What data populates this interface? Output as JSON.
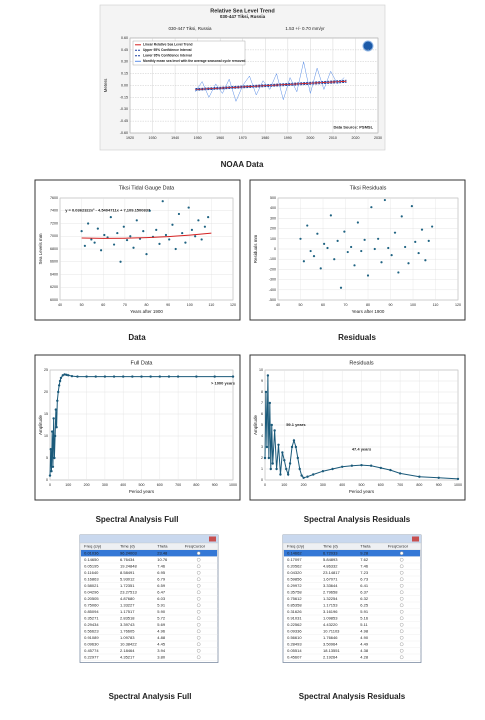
{
  "chart_data": [
    {
      "type": "line",
      "title": "Relative Sea Level Trend",
      "subtitle": "030-447 Tiksi, Russia",
      "station": "030-447 Tiksi, Russia",
      "trend_label": "1.53 +/- 0.70 mm/yr",
      "y_label": "Meters",
      "xlim": [
        1920,
        2030
      ],
      "xticks": [
        1920,
        1930,
        1940,
        1950,
        1960,
        1970,
        1980,
        1990,
        2000,
        2010,
        2020,
        2030
      ],
      "ylim": [
        -0.6,
        0.6
      ],
      "yticks": [
        {
          "value": -0.6,
          "label": "-0.60"
        },
        {
          "value": -0.45,
          "label": "-0.45"
        },
        {
          "value": -0.3,
          "label": "-0.30"
        },
        {
          "value": -0.15,
          "label": "-0.15"
        },
        {
          "value": 0,
          "label": "0.00"
        },
        {
          "value": 0.15,
          "label": "0.15"
        },
        {
          "value": 0.3,
          "label": "0.30"
        },
        {
          "value": 0.45,
          "label": "0.45"
        },
        {
          "value": 0.6,
          "label": "0.60"
        }
      ],
      "grid": true,
      "legend": "upper left",
      "annotations": [
        "Data Source: PSMSL"
      ],
      "series": [
        {
          "name": "Linear Relative Sea Level Trend",
          "color": "#d42020",
          "x": [
            1949,
            2016
          ],
          "values": [
            -0.05,
            0.053
          ]
        },
        {
          "name": "Upper 95% Confidence Interval",
          "color": "#1d3f9e",
          "dash": true,
          "x": [
            1949,
            2016
          ],
          "values": [
            -0.04,
            0.066
          ]
        },
        {
          "name": "Lower 95% Confidence Interval",
          "color": "#1d3f9e",
          "dash": true,
          "x": [
            1949,
            2016
          ],
          "values": [
            -0.06,
            0.04
          ]
        },
        {
          "name": "Monthly mean sea level with the average seasonal cycle removed",
          "color": "#5b8ee6",
          "x": [
            1949,
            1952,
            1955,
            1958,
            1961,
            1964,
            1967,
            1970,
            1973,
            1976,
            1979,
            1982,
            1985,
            1988,
            1991,
            1994,
            1997,
            2000,
            2003,
            2006,
            2009,
            2012,
            2015
          ],
          "values": [
            -0.08,
            0.05,
            -0.15,
            0.02,
            -0.1,
            0.08,
            -0.2,
            0.0,
            0.12,
            -0.12,
            0.06,
            -0.05,
            0.15,
            -0.18,
            0.1,
            -0.08,
            0.3,
            -0.1,
            0.22,
            -0.05,
            0.18,
            0.02,
            0.1
          ]
        }
      ]
    },
    {
      "type": "scatter",
      "title": "Tiksi Tidal Gauge Data",
      "x_label": "Years after 1900",
      "y_label": "Sea Levels mm",
      "xlim": [
        40,
        120
      ],
      "xticks": [
        40,
        50,
        60,
        70,
        80,
        90,
        100,
        110,
        120
      ],
      "ylim": [
        6000,
        7600
      ],
      "yticks": [
        6000,
        6200,
        6400,
        6600,
        6800,
        7000,
        7200,
        7400,
        7600
      ],
      "grid": true,
      "annotations": [
        "y = 0.0362322x² - 4.5404711x + 7,109.1500837"
      ],
      "series": [
        {
          "type": "scatter",
          "color": "#1f6382",
          "x": [
            50,
            51.5,
            53,
            54.5,
            56,
            57.5,
            59,
            60.5,
            62,
            63.5,
            65,
            66.5,
            68,
            69.5,
            71,
            72.5,
            74,
            75.5,
            77,
            78.5,
            80,
            81.5,
            83,
            84.5,
            86,
            87.5,
            89,
            90.5,
            92,
            93.5,
            95,
            96.5,
            98,
            99.5,
            101,
            102.5,
            104,
            105.5,
            107,
            108.5
          ],
          "values": [
            7080,
            6850,
            7200,
            6950,
            6900,
            7120,
            6780,
            7020,
            6980,
            7300,
            6870,
            7050,
            6600,
            7150,
            6940,
            7000,
            6820,
            7250,
            6960,
            7080,
            6720,
            7400,
            6990,
            7100,
            6880,
            7550,
            7020,
            6950,
            7180,
            6800,
            7350,
            7050,
            6900,
            7450,
            7100,
            7000,
            7250,
            6950,
            7150,
            7300
          ]
        },
        {
          "type": "line",
          "color": "#d42020",
          "x": [
            50,
            60,
            70,
            80,
            90,
            100,
            110
          ],
          "values": [
            6972.7,
            6967.2,
            6968.8,
            6977.8,
            6994.0,
            7017.4,
            7048.1
          ]
        }
      ]
    },
    {
      "type": "scatter",
      "title": "Tiksi Residuals",
      "x_label": "Years after 1900",
      "y_label": "Residuals mm",
      "xlim": [
        40,
        120
      ],
      "xticks": [
        40,
        50,
        60,
        70,
        80,
        90,
        100,
        110,
        120
      ],
      "ylim": [
        -500,
        500
      ],
      "yticks": [
        -500,
        -400,
        -300,
        -200,
        -100,
        0,
        100,
        200,
        300,
        400,
        500
      ],
      "grid": true,
      "series": [
        {
          "type": "scatter",
          "color": "#1f6382",
          "x": [
            50,
            51.5,
            53,
            54.5,
            56,
            57.5,
            59,
            60.5,
            62,
            63.5,
            65,
            66.5,
            68,
            69.5,
            71,
            72.5,
            74,
            75.5,
            77,
            78.5,
            80,
            81.5,
            83,
            84.5,
            86,
            87.5,
            89,
            90.5,
            92,
            93.5,
            95,
            96.5,
            98,
            99.5,
            101,
            102.5,
            104,
            105.5,
            107,
            108.5
          ],
          "values": [
            100,
            -120,
            230,
            -20,
            -70,
            150,
            -190,
            50,
            10,
            330,
            -100,
            80,
            -380,
            170,
            -30,
            20,
            -160,
            260,
            -20,
            90,
            -260,
            410,
            0,
            100,
            -130,
            480,
            10,
            -60,
            160,
            -230,
            320,
            20,
            -140,
            420,
            70,
            -40,
            190,
            -110,
            80,
            220
          ]
        }
      ]
    },
    {
      "type": "line",
      "title": "Full Data",
      "x_label": "Period years",
      "y_label": "Amplitude",
      "xlim": [
        0,
        1000
      ],
      "xticks": [
        0,
        100,
        200,
        300,
        400,
        500,
        600,
        700,
        800,
        900,
        1000
      ],
      "ylim": [
        0,
        25
      ],
      "yticks": [
        0,
        5,
        10,
        15,
        20,
        25
      ],
      "grid": true,
      "annotations": [
        "> 1000 years"
      ],
      "series": [
        {
          "color": "#1b5a7a",
          "marker": true,
          "x": [
            0,
            4,
            8,
            12,
            16,
            20,
            24,
            28,
            32,
            36,
            40,
            45,
            50,
            55,
            60,
            70,
            80,
            90,
            100,
            120,
            150,
            200,
            250,
            300,
            350,
            400,
            450,
            500,
            550,
            600,
            650,
            700,
            800,
            900,
            1000
          ],
          "values": [
            1,
            7,
            2,
            11,
            3,
            14,
            5,
            10,
            16,
            12,
            18,
            20,
            21.5,
            22.5,
            23.2,
            23.8,
            24,
            23.9,
            23.8,
            23.6,
            23.5,
            23.5,
            23.5,
            23.5,
            23.5,
            23.5,
            23.5,
            23.5,
            23.5,
            23.5,
            23.5,
            23.5,
            23.5,
            23.5,
            23.5
          ]
        }
      ]
    },
    {
      "type": "line",
      "title": "Residuals",
      "x_label": "Period years",
      "y_label": "Amplitude",
      "xlim": [
        0,
        1000
      ],
      "xticks": [
        0,
        100,
        200,
        300,
        400,
        500,
        600,
        700,
        800,
        900,
        1000
      ],
      "ylim": [
        0,
        10
      ],
      "yticks": [
        0,
        1,
        2,
        3,
        4,
        5,
        6,
        7,
        8,
        9,
        10
      ],
      "grid": true,
      "annotations": [
        "59.1 years",
        "47.4 years"
      ],
      "series": [
        {
          "color": "#1b5a7a",
          "marker": true,
          "x": [
            0,
            5,
            10,
            15,
            20,
            25,
            30,
            35,
            40,
            50,
            60,
            70,
            80,
            90,
            100,
            110,
            120,
            130,
            140,
            150,
            160,
            170,
            180,
            190,
            200,
            220,
            250,
            300,
            350,
            400,
            450,
            500,
            550,
            600,
            650,
            700,
            800,
            900,
            1000
          ],
          "values": [
            2,
            8,
            3,
            9.5,
            2,
            7,
            1,
            5,
            1.5,
            4.5,
            1,
            3.2,
            0.5,
            2.5,
            1.8,
            1,
            0.5,
            1.5,
            3,
            3.6,
            3,
            2,
            1,
            0.4,
            0.2,
            0.3,
            0.5,
            0.8,
            1.0,
            1.2,
            1.3,
            1.35,
            1.3,
            1.1,
            0.9,
            0.6,
            0.3,
            0.2,
            0.1
          ]
        }
      ]
    }
  ],
  "captions": [
    "NOAA Data",
    "Data",
    "Residuals",
    "Spectral Analysis Full",
    "Spectral Analysis Residuals",
    "Spectral Analysis Full",
    "Spectral Analysis Residuals"
  ],
  "tables": [
    {
      "columns": [
        "Freq (c/y)",
        "Time (d)",
        "Theta",
        "FreqCursor"
      ],
      "selected_row": 0,
      "rows": [
        [
          "0.01036",
          "96.24003",
          "23.48"
        ],
        [
          "0.14650",
          "6.76434",
          "10.76"
        ],
        [
          "0.05195",
          "19.24848",
          "7.46"
        ],
        [
          "0.11640",
          "8.58491",
          "6.95"
        ],
        [
          "0.16863",
          "5.93012",
          "6.79"
        ],
        [
          "0.58021",
          "1.72351",
          "6.59"
        ],
        [
          "0.04296",
          "23.27513",
          "6.47"
        ],
        [
          "0.20505",
          "4.87680",
          "6.03"
        ],
        [
          "0.75060",
          "1.33227",
          "5.91"
        ],
        [
          "0.85094",
          "1.17517",
          "5.90"
        ],
        [
          "0.35271",
          "2.83518",
          "5.72"
        ],
        [
          "0.29434",
          "3.39743",
          "5.69"
        ],
        [
          "0.56623",
          "1.76605",
          "4.96"
        ],
        [
          "0.91089",
          "1.09783",
          "4.88"
        ],
        [
          "0.09630",
          "10.38422",
          "4.45"
        ],
        [
          "0.45774",
          "2.18464",
          "3.94"
        ],
        [
          "0.22977",
          "4.35217",
          "3.80"
        ]
      ]
    },
    {
      "columns": [
        "Freq (c/y)",
        "Time (d)",
        "Theta",
        "FreqCursor"
      ],
      "selected_row": 0,
      "rows": [
        [
          "0.14662",
          "6.72033",
          "9.28"
        ],
        [
          "0.17097",
          "5.84893",
          "7.62"
        ],
        [
          "0.20562",
          "4.86332",
          "7.46"
        ],
        [
          "0.04320",
          "23.14817",
          "7.23"
        ],
        [
          "0.59856",
          "1.67071",
          "6.73"
        ],
        [
          "0.29972",
          "3.33644",
          "6.41"
        ],
        [
          "0.35758",
          "2.79658",
          "6.37"
        ],
        [
          "0.75612",
          "1.32254",
          "6.32"
        ],
        [
          "0.85358",
          "1.17153",
          "6.25"
        ],
        [
          "0.31626",
          "3.16196",
          "5.91"
        ],
        [
          "0.91031",
          "1.09853",
          "5.16"
        ],
        [
          "0.22562",
          "4.43220",
          "5.11"
        ],
        [
          "0.09336",
          "10.71103",
          "4.98"
        ],
        [
          "0.56610",
          "1.76646",
          "4.90"
        ],
        [
          "0.28493",
          "3.50964",
          "4.49"
        ],
        [
          "0.05514",
          "18.13551",
          "4.38"
        ],
        [
          "0.45607",
          "2.19264",
          "4.28"
        ]
      ]
    }
  ]
}
